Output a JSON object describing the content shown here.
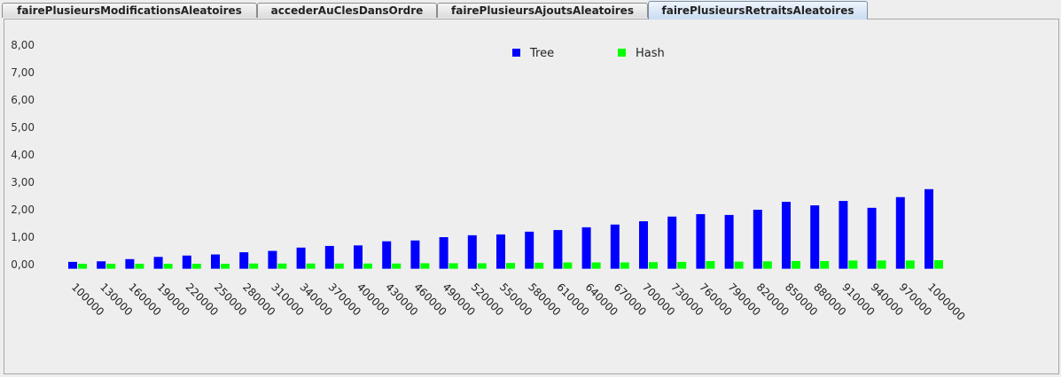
{
  "tabs": [
    {
      "label": "fairePlusieursModificationsAleatoires",
      "selected": false
    },
    {
      "label": "accederAuClesDansOrdre",
      "selected": false
    },
    {
      "label": "fairePlusieursAjoutsAleatoires",
      "selected": false
    },
    {
      "label": "fairePlusieursRetraitsAleatoires",
      "selected": true
    }
  ],
  "chart_data": {
    "type": "bar",
    "categories": [
      "100000",
      "130000",
      "160000",
      "190000",
      "220000",
      "250000",
      "280000",
      "310000",
      "340000",
      "370000",
      "400000",
      "430000",
      "460000",
      "490000",
      "520000",
      "550000",
      "580000",
      "610000",
      "640000",
      "670000",
      "700000",
      "730000",
      "760000",
      "790000",
      "820000",
      "850000",
      "880000",
      "910000",
      "940000",
      "970000",
      "1000000"
    ],
    "series": [
      {
        "name": "Tree",
        "color": "#0000ff",
        "values": [
          0.1,
          0.12,
          0.2,
          0.28,
          0.33,
          0.37,
          0.45,
          0.5,
          0.62,
          0.68,
          0.7,
          0.85,
          0.88,
          1.0,
          1.07,
          1.1,
          1.2,
          1.26,
          1.36,
          1.46,
          1.58,
          1.75,
          1.84,
          1.81,
          2.0,
          2.29,
          2.16,
          2.32,
          2.07,
          2.46,
          2.75
        ]
      },
      {
        "name": "Hash",
        "color": "#00ff00",
        "values": [
          0.03,
          0.03,
          0.03,
          0.03,
          0.03,
          0.03,
          0.04,
          0.04,
          0.04,
          0.04,
          0.04,
          0.04,
          0.05,
          0.05,
          0.05,
          0.06,
          0.07,
          0.08,
          0.08,
          0.08,
          0.09,
          0.1,
          0.13,
          0.11,
          0.12,
          0.13,
          0.13,
          0.15,
          0.15,
          0.15,
          0.16
        ]
      }
    ],
    "yticks": [
      "0,00",
      "1,00",
      "2,00",
      "3,00",
      "4,00",
      "5,00",
      "6,00",
      "7,00",
      "8,00"
    ],
    "ylim": [
      -0.15,
      8.15
    ],
    "grid": false,
    "legend": "top-center",
    "title": "",
    "xlabel": "",
    "ylabel": ""
  }
}
